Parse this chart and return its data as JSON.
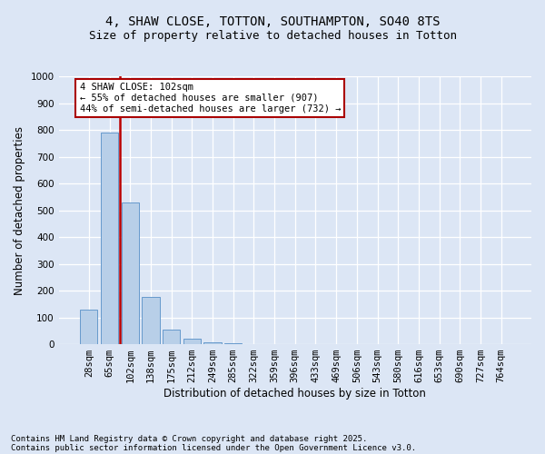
{
  "title_line1": "4, SHAW CLOSE, TOTTON, SOUTHAMPTON, SO40 8TS",
  "title_line2": "Size of property relative to detached houses in Totton",
  "xlabel": "Distribution of detached houses by size in Totton",
  "ylabel": "Number of detached properties",
  "annotation_title": "4 SHAW CLOSE: 102sqm",
  "annotation_line2": "← 55% of detached houses are smaller (907)",
  "annotation_line3": "44% of semi-detached houses are larger (732) →",
  "footnote_line1": "Contains HM Land Registry data © Crown copyright and database right 2025.",
  "footnote_line2": "Contains public sector information licensed under the Open Government Licence v3.0.",
  "categories": [
    "28sqm",
    "65sqm",
    "102sqm",
    "138sqm",
    "175sqm",
    "212sqm",
    "249sqm",
    "285sqm",
    "322sqm",
    "359sqm",
    "396sqm",
    "433sqm",
    "469sqm",
    "506sqm",
    "543sqm",
    "580sqm",
    "616sqm",
    "653sqm",
    "690sqm",
    "727sqm",
    "764sqm"
  ],
  "values": [
    130,
    790,
    530,
    175,
    55,
    20,
    8,
    3,
    0,
    0,
    0,
    0,
    0,
    0,
    0,
    0,
    0,
    0,
    0,
    0,
    0
  ],
  "bar_color": "#b8cfe8",
  "bar_edge_color": "#6699cc",
  "redline_index": 1.5,
  "ylim": [
    0,
    1000
  ],
  "yticks": [
    0,
    100,
    200,
    300,
    400,
    500,
    600,
    700,
    800,
    900,
    1000
  ],
  "background_color": "#dce6f5",
  "plot_bg_color": "#dce6f5",
  "grid_color": "#ffffff",
  "annotation_box_facecolor": "#ffffff",
  "annotation_box_edge": "#aa0000",
  "redline_color": "#bb0000",
  "title_fontsize": 10,
  "subtitle_fontsize": 9,
  "axis_label_fontsize": 8.5,
  "tick_fontsize": 7.5,
  "annotation_fontsize": 7.5,
  "footnote_fontsize": 6.5
}
